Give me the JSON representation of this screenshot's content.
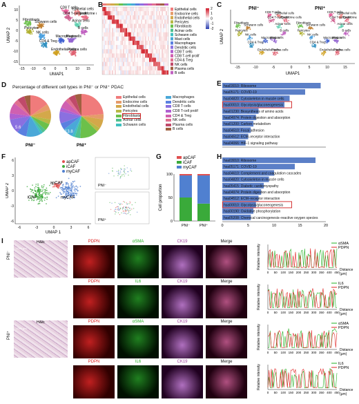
{
  "panels": {
    "A": "A",
    "B": "B",
    "C": "C",
    "D": "D",
    "E": "E",
    "F": "F",
    "G": "G",
    "H": "H",
    "I": "I"
  },
  "umap_axes": {
    "xlabel": "UMAP1",
    "ylabel": "UMAP 2",
    "xticks": [
      "-15",
      "-10",
      "-5",
      "0",
      "5",
      "10",
      "15"
    ],
    "yticks": [
      "10",
      "5",
      "0",
      "-5",
      "-10",
      "-15"
    ]
  },
  "umap_clusters": [
    {
      "name": "CD8 T cells",
      "color": "#e85f9a"
    },
    {
      "name": "Epithelial cells",
      "color": "#f08a8a"
    },
    {
      "name": "Endocrine cells",
      "color": "#e86f86"
    },
    {
      "name": "Fibroblasts",
      "color": "#6cc04a"
    },
    {
      "name": "Schwann cells",
      "color": "#c08030"
    },
    {
      "name": "Acinar cells",
      "color": "#60d0b0"
    },
    {
      "name": "CD4 T-cell prolif",
      "color": "#d06090"
    },
    {
      "name": "B cells",
      "color": "#c060c0"
    },
    {
      "name": "NK cells",
      "color": "#4aa0e0"
    },
    {
      "name": "Pericytes",
      "color": "#b0b030"
    },
    {
      "name": "Macrophages",
      "color": "#4060d0"
    },
    {
      "name": "Mast cells",
      "color": "#9060d0"
    },
    {
      "name": "CD4 & Treg",
      "color": "#3090c0"
    },
    {
      "name": "Endothelial cells",
      "color": "#d0a020"
    },
    {
      "name": "Plasma cells",
      "color": "#e06070"
    }
  ],
  "heatmap": {
    "rows": [
      "Epithelial cells",
      "Endocrine cells",
      "Endothelial cells",
      "Pericytes",
      "Fibroblasts",
      "Acinar cells",
      "Schwann cells",
      "Mast cells",
      "Macrophages",
      "Dendritic cells",
      "CD8 T cells",
      "CD8 T-cell prolif",
      "CD4 & Treg",
      "NK cells",
      "Plasma cells",
      "B cells"
    ],
    "scale_ticks": [
      "2",
      "1",
      "0",
      "-1",
      "-2"
    ]
  },
  "C": {
    "left_title": "PNI⁻",
    "right_title": "PNI⁺"
  },
  "D": {
    "title": "Percentage of different cell types in PNI⁻ or PNI⁺ PDAC",
    "pie_labels": [
      "PNI⁻",
      "PNI⁺"
    ],
    "callouts": [
      "5.6",
      "13.8"
    ],
    "legend_left": [
      "Epithelial cells",
      "Endocrine cells",
      "Endothelial cells",
      "Pericytes",
      "Fibroblasts",
      "Acinar cells",
      "Schwann cells"
    ],
    "legend_right": [
      "Macrophages",
      "Dendritic cells",
      "CD8 T cells",
      "CD8 T-cell prolif",
      "CD4 & Treg",
      "NK cells",
      "Plasma cells",
      "B cells"
    ],
    "legend_colors": [
      "#f07b7b",
      "#e59b6a",
      "#d4a84a",
      "#b8b845",
      "#6cc04a",
      "#50c090",
      "#40c0c0",
      "#4aa8d8",
      "#5a80e0",
      "#8a70e0",
      "#b060d0",
      "#d060b0",
      "#e07090",
      "#c04a6a",
      "#a06040"
    ]
  },
  "E": {
    "terms": [
      "hsa03010: Ribosome",
      "hsa05171: COVID-19",
      "hsa04820: Cytoskeleton in muscle cells",
      "hsa00010: Glycolysis/gluconeogenesis",
      "hsa01230: Biosynthesis of amino acids",
      "hsa04974: Protein digestion and absorption",
      "hsa01200: Carbon metabolism",
      "hsa04510: Focal adhesion",
      "hsa04512: ECM–receptor interaction",
      "hsa04066: HIF-1 signaling pathway"
    ],
    "values": [
      19,
      16,
      13,
      12,
      7,
      6.5,
      6,
      5.5,
      5,
      4.5
    ],
    "highlight": 3
  },
  "F": {
    "legend": [
      {
        "name": "apCAF",
        "color": "#e05050"
      },
      {
        "name": "iCAF",
        "color": "#3aaa3a"
      },
      {
        "name": "myCAF",
        "color": "#5080d0"
      }
    ],
    "labels": [
      "apCAF",
      "iCAF",
      "myCAF",
      "PNI⁻",
      "PNI⁺"
    ],
    "xlabel": "UMAP 1",
    "ylabel": "UMAP 2",
    "xticks": [
      "-6",
      "-3",
      "0",
      "3",
      "6"
    ],
    "yticks": [
      "6",
      "3",
      "0",
      "-3",
      "-6"
    ]
  },
  "chart_data": {
    "type": "bar",
    "categories": [
      "PNI⁻",
      "PNI⁺"
    ],
    "series": [
      {
        "name": "apCAF",
        "values": [
          0.03,
          0.03
        ],
        "color": "#e05050"
      },
      {
        "name": "iCAF",
        "values": [
          0.5,
          0.37
        ],
        "color": "#3aaa3a"
      },
      {
        "name": "myCAF",
        "values": [
          0.47,
          0.6
        ],
        "color": "#5080d0"
      }
    ],
    "ylabel": "Cell proportion",
    "yticks": [
      "0",
      "50",
      "100"
    ],
    "ylim": [
      0,
      1
    ],
    "stacked": true
  },
  "H": {
    "terms": [
      "hsa03010: Ribosome",
      "hsa05171: COVID-19",
      "hsa04610: Complement and coagulation cascades",
      "hsa04820: Cytoskeleton in muscle cells",
      "hsa05415: Diabetic cardiomyopathy",
      "hsa04974: Protein digestion and absorption",
      "hsa04512: ECM–receptor interaction",
      "hsa00010: Glycolysis/gluconeogenesis",
      "hsa00190: Oxidative phosphorylation",
      "hsa05208: Chemical carcinogenesis–reactive oxygen species"
    ],
    "values": [
      18,
      14,
      10,
      9,
      8,
      7.5,
      7,
      6.5,
      6,
      5.5
    ],
    "highlight": 7,
    "xticks": [
      "0",
      "5",
      "10",
      "15",
      "20"
    ]
  },
  "I": {
    "rows": [
      {
        "group": "PNI⁻",
        "he": "H&E",
        "ch": [
          "PDPN",
          "αSMA",
          "CK19",
          "Merge"
        ],
        "ch_colors": [
          "#e02020",
          "#20b020",
          "#a040a0",
          "#111"
        ],
        "profile": [
          "αSMA",
          "PDPN"
        ],
        "profile_colors": [
          "#20b020",
          "#e02020"
        ]
      },
      {
        "group": "",
        "he": "",
        "ch": [
          "PDPN",
          "IL6",
          "CK19",
          "Merge"
        ],
        "ch_colors": [
          "#e02020",
          "#20b020",
          "#a040a0",
          "#111"
        ],
        "profile": [
          "IL6",
          "PDPN"
        ],
        "profile_colors": [
          "#20b020",
          "#e02020"
        ]
      },
      {
        "group": "PNI⁺",
        "he": "H&E",
        "ch": [
          "PDPN",
          "αSMA",
          "CK19",
          "Merge"
        ],
        "ch_colors": [
          "#e02020",
          "#20b020",
          "#a040a0",
          "#111"
        ],
        "profile": [
          "αSMA",
          "PDPN"
        ],
        "profile_colors": [
          "#20b020",
          "#e02020"
        ]
      },
      {
        "group": "",
        "he": "",
        "ch": [
          "PDPN",
          "IL6",
          "CK19",
          "Merge"
        ],
        "ch_colors": [
          "#e02020",
          "#20b020",
          "#a040a0",
          "#111"
        ],
        "profile": [
          "IL6",
          "PDPN"
        ],
        "profile_colors": [
          "#20b020",
          "#e02020"
        ]
      }
    ],
    "scalebar": "1000 μm",
    "profile_xlabel": "Distance",
    "profile_unit": "(μm)",
    "profile_ylabel": "Relative intensity",
    "profile_xticks": [
      "0",
      "50",
      "100",
      "150",
      "200",
      "250",
      "300",
      "350",
      "400",
      "450"
    ]
  }
}
